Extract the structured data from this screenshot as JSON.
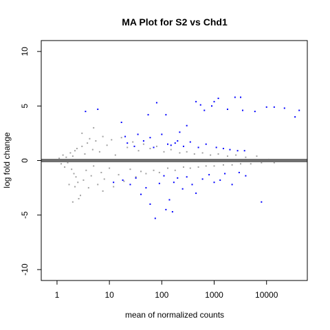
{
  "chart_data": {
    "type": "scatter",
    "title": "MA Plot for S2 vs Chd1",
    "xlabel": "mean of normalized counts",
    "ylabel": "log fold change",
    "x_scale": "log10",
    "xlim": [
      0.5,
      60000
    ],
    "ylim": [
      -11,
      11
    ],
    "x_ticks": [
      1,
      10,
      100,
      1000,
      10000
    ],
    "x_tick_labels": [
      "1",
      "10",
      "100",
      "1000",
      "10000"
    ],
    "y_ticks": [
      -10,
      -5,
      0,
      5,
      10
    ],
    "y_tick_labels": [
      "-10",
      "-5",
      "0",
      "5",
      "10"
    ],
    "hline_y": 0,
    "grid": false,
    "colors": {
      "nonsignificant": "#a0a0a0",
      "significant": "#0000ff",
      "zero_line": "#707070"
    },
    "series": [
      {
        "name": "",
        "color": "nonsignificant",
        "points": [
          [
            1.1,
            0.2
          ],
          [
            1.2,
            -0.3
          ],
          [
            1.3,
            0.5
          ],
          [
            1.4,
            -0.6
          ],
          [
            1.5,
            0.3
          ],
          [
            1.6,
            -0.2
          ],
          [
            1.8,
            0.7
          ],
          [
            1.9,
            -0.8
          ],
          [
            2.0,
            0.4
          ],
          [
            2.1,
            -1.2
          ],
          [
            2.2,
            0.9
          ],
          [
            2.3,
            -1.5
          ],
          [
            2.4,
            1.1
          ],
          [
            2.5,
            -2.0
          ],
          [
            2.6,
            -3.5
          ],
          [
            2.8,
            -3.2
          ],
          [
            3.0,
            1.3
          ],
          [
            3.2,
            -1.8
          ],
          [
            3.4,
            0.6
          ],
          [
            3.6,
            -0.9
          ],
          [
            3.8,
            1.6
          ],
          [
            4.0,
            -2.5
          ],
          [
            4.2,
            2.0
          ],
          [
            4.5,
            -1.4
          ],
          [
            4.8,
            1.0
          ],
          [
            5.0,
            -0.5
          ],
          [
            5.5,
            1.8
          ],
          [
            6.0,
            -2.2
          ],
          [
            6.5,
            0.8
          ],
          [
            7.0,
            -1.1
          ],
          [
            7.5,
            2.2
          ],
          [
            8.0,
            -1.7
          ],
          [
            9.0,
            1.4
          ],
          [
            10,
            -0.7
          ],
          [
            11,
            1.9
          ],
          [
            12,
            -2.4
          ],
          [
            13,
            0.5
          ],
          [
            15,
            -1.3
          ],
          [
            17,
            2.1
          ],
          [
            19,
            -1.9
          ],
          [
            22,
            1.2
          ],
          [
            25,
            -0.8
          ],
          [
            28,
            1.7
          ],
          [
            32,
            -1.5
          ],
          [
            36,
            0.9
          ],
          [
            40,
            -1.0
          ],
          [
            45,
            1.5
          ],
          [
            50,
            -1.2
          ],
          [
            60,
            1.1
          ],
          [
            70,
            -0.9
          ],
          [
            80,
            1.3
          ],
          [
            90,
            -1.1
          ],
          [
            110,
            0.8
          ],
          [
            130,
            -0.7
          ],
          [
            150,
            1.0
          ],
          [
            180,
            -0.9
          ],
          [
            220,
            0.7
          ],
          [
            260,
            -0.6
          ],
          [
            300,
            0.8
          ],
          [
            350,
            -0.7
          ],
          [
            420,
            0.6
          ],
          [
            500,
            -0.6
          ],
          [
            600,
            0.7
          ],
          [
            700,
            -0.5
          ],
          [
            850,
            0.5
          ],
          [
            1000,
            -0.5
          ],
          [
            1200,
            0.6
          ],
          [
            1500,
            -0.4
          ],
          [
            1800,
            0.4
          ],
          [
            2200,
            -0.4
          ],
          [
            2600,
            0.5
          ],
          [
            3200,
            -0.3
          ],
          [
            4000,
            0.3
          ],
          [
            5000,
            -0.3
          ],
          [
            6500,
            0.4
          ],
          [
            8000,
            -0.2
          ],
          [
            11000,
            0.1
          ],
          [
            14000,
            -0.2
          ],
          [
            28000,
            0.0
          ],
          [
            3.0,
            2.5
          ],
          [
            5.0,
            3.0
          ],
          [
            7.5,
            -2.8
          ],
          [
            2.2,
            -2.4
          ],
          [
            1.7,
            -2.2
          ],
          [
            2.0,
            -3.8
          ]
        ]
      },
      {
        "name": "",
        "color": "significant",
        "points": [
          [
            3.5,
            4.5
          ],
          [
            6,
            4.7
          ],
          [
            17,
            3.5
          ],
          [
            20,
            2.2
          ],
          [
            22,
            1.6
          ],
          [
            35,
            2.4
          ],
          [
            45,
            1.8
          ],
          [
            55,
            4.2
          ],
          [
            60,
            2.1
          ],
          [
            80,
            5.3
          ],
          [
            100,
            2.4
          ],
          [
            120,
            4.2
          ],
          [
            150,
            1.4
          ],
          [
            180,
            1.6
          ],
          [
            220,
            2.6
          ],
          [
            300,
            3.2
          ],
          [
            450,
            5.4
          ],
          [
            550,
            5.1
          ],
          [
            650,
            4.6
          ],
          [
            900,
            5.0
          ],
          [
            1000,
            5.4
          ],
          [
            1200,
            5.7
          ],
          [
            1800,
            4.7
          ],
          [
            2500,
            5.8
          ],
          [
            3200,
            5.8
          ],
          [
            3500,
            4.6
          ],
          [
            6000,
            4.5
          ],
          [
            10000,
            4.9
          ],
          [
            14000,
            4.9
          ],
          [
            22000,
            4.8
          ],
          [
            35000,
            4.0
          ],
          [
            42000,
            4.6
          ],
          [
            30,
            1.3
          ],
          [
            70,
            1.2
          ],
          [
            130,
            1.5
          ],
          [
            200,
            1.8
          ],
          [
            260,
            1.3
          ],
          [
            350,
            1.7
          ],
          [
            500,
            1.2
          ],
          [
            700,
            1.5
          ],
          [
            1100,
            1.2
          ],
          [
            1500,
            1.1
          ],
          [
            2000,
            1.0
          ],
          [
            2800,
            0.9
          ],
          [
            3800,
            0.9
          ],
          [
            12,
            -2.0
          ],
          [
            18,
            -1.8
          ],
          [
            25,
            -2.2
          ],
          [
            32,
            -1.6
          ],
          [
            40,
            -3.1
          ],
          [
            50,
            -2.5
          ],
          [
            60,
            -4.0
          ],
          [
            75,
            -5.3
          ],
          [
            90,
            -2.1
          ],
          [
            110,
            -1.4
          ],
          [
            140,
            -3.6
          ],
          [
            170,
            -2.0
          ],
          [
            200,
            -1.6
          ],
          [
            250,
            -2.6
          ],
          [
            300,
            -1.5
          ],
          [
            380,
            -2.2
          ],
          [
            450,
            -3.0
          ],
          [
            600,
            -1.7
          ],
          [
            800,
            -1.3
          ],
          [
            1000,
            -2.0
          ],
          [
            1300,
            -1.8
          ],
          [
            1600,
            -1.2
          ],
          [
            2200,
            -2.2
          ],
          [
            3000,
            -1.1
          ],
          [
            4000,
            -1.4
          ],
          [
            8000,
            -3.8
          ],
          [
            120,
            -4.5
          ],
          [
            160,
            -4.7
          ]
        ]
      }
    ]
  }
}
